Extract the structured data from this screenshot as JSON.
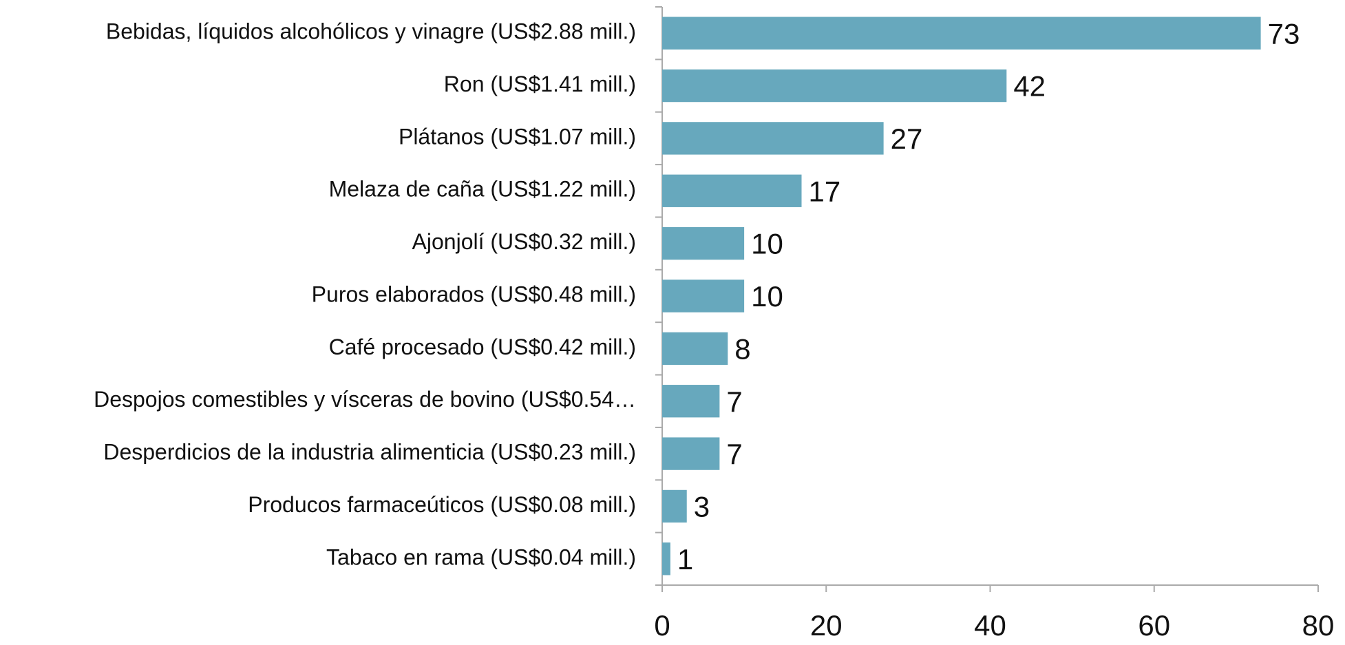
{
  "chart_data": {
    "type": "bar",
    "orientation": "horizontal",
    "categories": [
      "Bebidas, líquidos alcohólicos y vinagre (US$2.88 mill.)",
      "Ron (US$1.41 mill.)",
      "Plátanos (US$1.07 mill.)",
      "Melaza de caña (US$1.22 mill.)",
      "Ajonjolí (US$0.32 mill.)",
      "Puros elaborados (US$0.48 mill.)",
      "Café procesado (US$0.42 mill.)",
      "Despojos comestibles y vísceras de bovino (US$0.54…",
      "Desperdicios de la industria alimenticia (US$0.23 mill.)",
      "Producos farmaceúticos (US$0.08 mill.)",
      "Tabaco en rama (US$0.04 mill.)"
    ],
    "values": [
      73,
      42,
      27,
      17,
      10,
      10,
      8,
      7,
      7,
      3,
      1
    ],
    "color": "#67a8bd",
    "xlim": [
      0,
      80
    ],
    "xticks": [
      0,
      20,
      40,
      60,
      80
    ],
    "grid": false
  }
}
